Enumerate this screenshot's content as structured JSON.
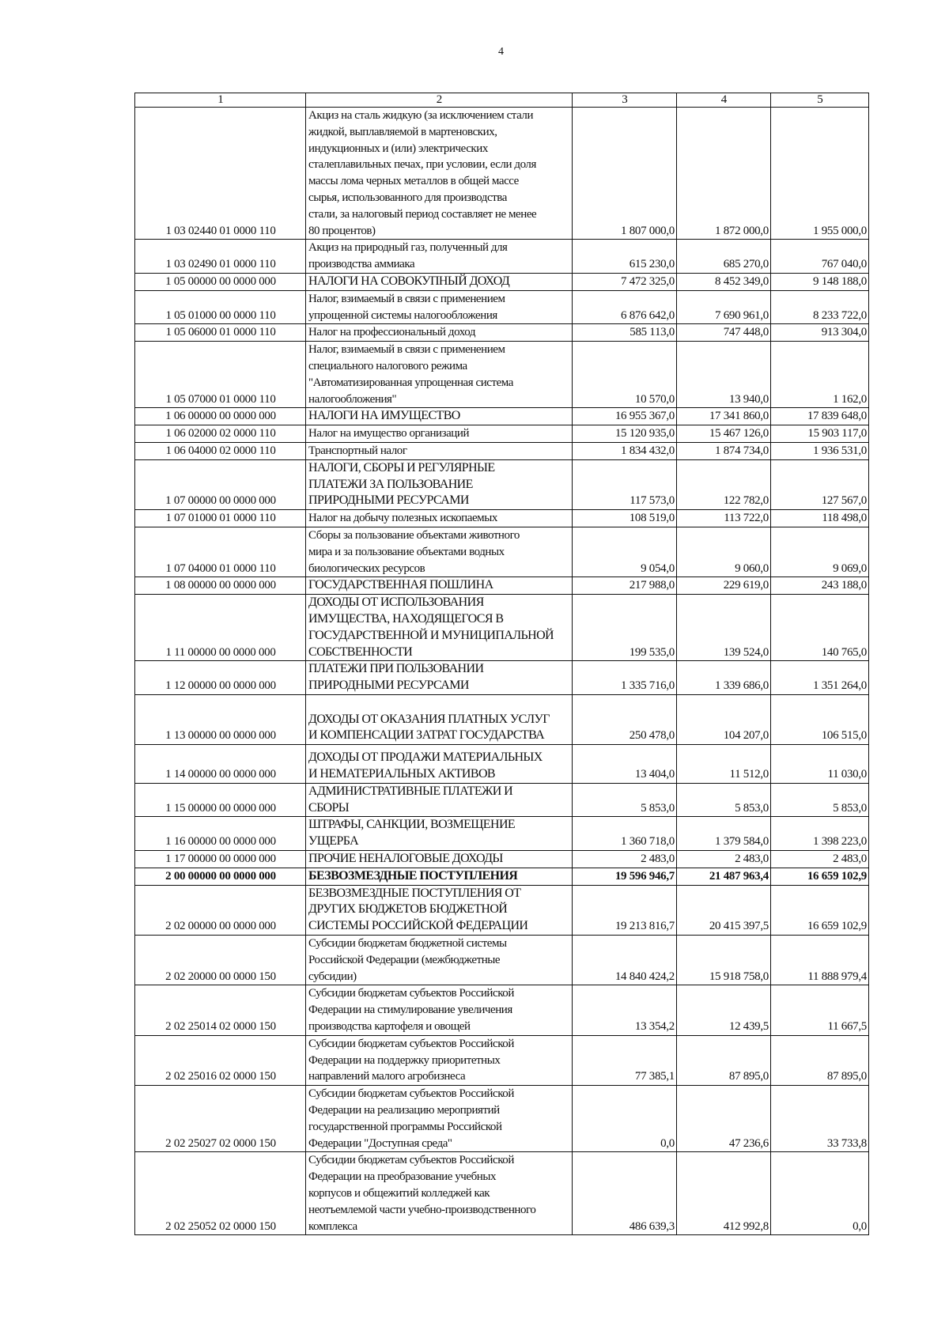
{
  "page_number": "4",
  "headers": [
    "1",
    "2",
    "3",
    "4",
    "5"
  ],
  "rows": [
    {
      "code": "1 03 02440 01 0000 110",
      "name": "Акциз на сталь жидкую (за исключением стали\nжидкой, выплавляемой в мартеновских,\nиндукционных и (или) электрических\nсталеплавильных печах, при условии, если доля\nмассы лома черных металлов в общей массе\nсырья, использованного для производства\nстали, за налоговый период составляет не менее\n80 процентов)",
      "v3": "1 807 000,0",
      "v4": "1 872 000,0",
      "v5": "1 955 000,0"
    },
    {
      "code": "1 03 02490 01 0000 110",
      "name": "Акциз на природный газ, полученный для\nпроизводства аммиака",
      "v3": "615 230,0",
      "v4": "685 270,0",
      "v5": "767 040,0"
    },
    {
      "code": "1 05 00000 00 0000 000",
      "name": "НАЛОГИ НА СОВОКУПНЫЙ ДОХОД",
      "caps": true,
      "v3": "7 472 325,0",
      "v4": "8 452 349,0",
      "v5": "9 148 188,0"
    },
    {
      "code": "1 05 01000 00 0000 110",
      "name": "Налог, взимаемый в связи с применением\nупрощенной системы налогообложения",
      "v3": "6 876 642,0",
      "v4": "7 690 961,0",
      "v5": "8 233 722,0"
    },
    {
      "code": "1 05 06000 01 0000 110",
      "name": "Налог на профессиональный доход",
      "v3": "585 113,0",
      "v4": "747 448,0",
      "v5": "913 304,0"
    },
    {
      "code": "1 05 07000 01 0000 110",
      "name": "Налог, взимаемый в связи с применением\nспециального налогового режима\n\"Автоматизированная упрощенная система\nналогообложения\"",
      "v3": "10 570,0",
      "v4": "13 940,0",
      "v5": "1 162,0"
    },
    {
      "code": "1 06 00000 00 0000 000",
      "name": "НАЛОГИ НА ИМУЩЕСТВО",
      "caps": true,
      "v3": "16 955 367,0",
      "v4": "17 341 860,0",
      "v5": "17 839 648,0"
    },
    {
      "code": "1 06 02000 02 0000 110",
      "name": "Налог на имущество организаций",
      "v3": "15 120 935,0",
      "v4": "15 467 126,0",
      "v5": "15 903 117,0"
    },
    {
      "code": "1 06 04000 02 0000 110",
      "name": "Транспортный налог",
      "v3": "1 834 432,0",
      "v4": "1 874 734,0",
      "v5": "1 936 531,0"
    },
    {
      "code": "1 07 00000 00 0000 000",
      "name": "НАЛОГИ, СБОРЫ И РЕГУЛЯРНЫЕ\nПЛАТЕЖИ ЗА ПОЛЬЗОВАНИЕ\nПРИРОДНЫМИ РЕСУРСАМИ",
      "caps": true,
      "v3": "117 573,0",
      "v4": "122 782,0",
      "v5": "127 567,0"
    },
    {
      "code": "1 07 01000 01 0000 110",
      "name": "Налог на добычу полезных ископаемых",
      "v3": "108 519,0",
      "v4": "113 722,0",
      "v5": "118 498,0"
    },
    {
      "code": "1 07 04000 01 0000 110",
      "name": "Сборы за пользование объектами животного\nмира и за пользование объектами водных\nбиологических ресурсов",
      "v3": "9 054,0",
      "v4": "9 060,0",
      "v5": "9 069,0"
    },
    {
      "code": "1 08 00000 00 0000 000",
      "name": "ГОСУДАРСТВЕННАЯ ПОШЛИНА",
      "caps": true,
      "v3": "217 988,0",
      "v4": "229 619,0",
      "v5": "243 188,0"
    },
    {
      "code": "1 11 00000 00 0000 000",
      "name": "ДОХОДЫ ОТ ИСПОЛЬЗОВАНИЯ\nИМУЩЕСТВА, НАХОДЯЩЕГОСЯ В\nГОСУДАРСТВЕННОЙ И МУНИЦИПАЛЬНОЙ\nСОБСТВЕННОСТИ",
      "caps": true,
      "v3": "199 535,0",
      "v4": "139 524,0",
      "v5": "140 765,0"
    },
    {
      "code": "1 12 00000 00 0000 000",
      "name": "ПЛАТЕЖИ ПРИ ПОЛЬЗОВАНИИ\nПРИРОДНЫМИ РЕСУРСАМИ",
      "caps": true,
      "v3": "1 335 716,0",
      "v4": "1 339 686,0",
      "v5": "1 351 264,0"
    },
    {
      "code": "1 13 00000 00 0000 000",
      "name": "\nДОХОДЫ ОТ ОКАЗАНИЯ ПЛАТНЫХ УСЛУГ\nИ КОМПЕНСАЦИИ ЗАТРАТ ГОСУДАРСТВА",
      "caps": true,
      "v3": "250 478,0",
      "v4": "104 207,0",
      "v5": "106 515,0"
    },
    {
      "code": "1 14 00000 00 0000 000",
      "name": "ДОХОДЫ ОТ ПРОДАЖИ МАТЕРИАЛЬНЫХ\nИ НЕМАТЕРИАЛЬНЫХ АКТИВОВ",
      "caps": true,
      "tall": true,
      "v3": "13 404,0",
      "v4": "11 512,0",
      "v5": "11 030,0"
    },
    {
      "code": "1 15 00000 00 0000 000",
      "name": "АДМИНИСТРАТИВНЫЕ ПЛАТЕЖИ И\nСБОРЫ",
      "caps": true,
      "v3": "5 853,0",
      "v4": "5 853,0",
      "v5": "5 853,0"
    },
    {
      "code": "1 16 00000 00 0000 000",
      "name": "ШТРАФЫ, САНКЦИИ, ВОЗМЕЩЕНИЕ\nУЩЕРБА",
      "caps": true,
      "v3": "1 360 718,0",
      "v4": "1 379 584,0",
      "v5": "1 398 223,0"
    },
    {
      "code": "1 17 00000 00 0000 000",
      "name": "ПРОЧИЕ НЕНАЛОГОВЫЕ ДОХОДЫ",
      "caps": true,
      "v3": "2 483,0",
      "v4": "2 483,0",
      "v5": "2 483,0"
    },
    {
      "code": "2 00 00000 00 0000 000",
      "name": "БЕЗВОЗМЕЗДНЫЕ ПОСТУПЛЕНИЯ",
      "caps": true,
      "bold": true,
      "v3": "19 596 946,7",
      "v4": "21 487 963,4",
      "v5": "16 659 102,9"
    },
    {
      "code": "2 02 00000 00 0000 000",
      "name": "БЕЗВОЗМЕЗДНЫЕ ПОСТУПЛЕНИЯ ОТ\nДРУГИХ БЮДЖЕТОВ БЮДЖЕТНОЙ\nСИСТЕМЫ РОССИЙСКОЙ ФЕДЕРАЦИИ",
      "caps": true,
      "v3": "19 213 816,7",
      "v4": "20 415 397,5",
      "v5": "16 659 102,9"
    },
    {
      "code": "2 02 20000 00 0000 150",
      "name": "Субсидии бюджетам бюджетной системы\nРоссийской Федерации (межбюджетные\nсубсидии)",
      "v3": "14 840 424,2",
      "v4": "15 918 758,0",
      "v5": "11 888 979,4"
    },
    {
      "code": "2 02 25014 02 0000 150",
      "name": "Субсидии бюджетам субъектов Российской\nФедерации на стимулирование увеличения\nпроизводства картофеля и овощей",
      "v3": "13 354,2",
      "v4": "12 439,5",
      "v5": "11 667,5"
    },
    {
      "code": "2 02 25016 02 0000 150",
      "name": "Субсидии бюджетам субъектов Российской\nФедерации на поддержку приоритетных\nнаправлений малого агробизнеса",
      "v3": "77 385,1",
      "v4": "87 895,0",
      "v5": "87 895,0"
    },
    {
      "code": "2 02 25027 02 0000 150",
      "name": "Субсидии бюджетам субъектов Российской\nФедерации на реализацию мероприятий\nгосударственной программы Российской\nФедерации \"Доступная среда\"",
      "v3": "0,0",
      "v4": "47 236,6",
      "v5": "33 733,8"
    },
    {
      "code": "2 02 25052 02 0000 150",
      "name": "Субсидии бюджетам субъектов Российской\nФедерации на преобразование учебных\nкорпусов и общежитий колледжей как\nнеотъемлемой части учебно-производственного\nкомплекса",
      "v3": "486 639,3",
      "v4": "412 992,8",
      "v5": "0,0"
    }
  ]
}
